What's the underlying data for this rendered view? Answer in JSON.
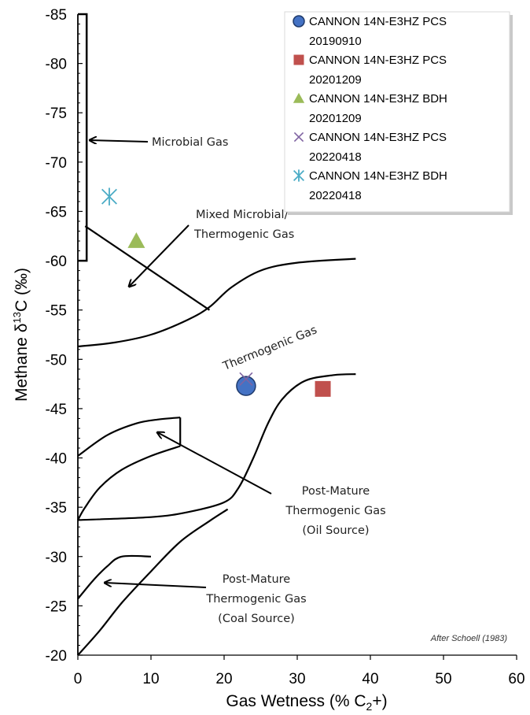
{
  "chart_data": {
    "type": "scatter",
    "xlabel": "Gas Wetness (% C",
    "xlabel_sub": "2",
    "xlabel_tail": "+)",
    "ylabel": "Methane",
    "ylabel_delta": "δ",
    "ylabel_sup": "13",
    "ylabel_tail": "C (‰)",
    "xlim": [
      0,
      60
    ],
    "ylim": [
      -20,
      -85
    ],
    "xticks": [
      "0",
      "10",
      "20",
      "30",
      "40",
      "50",
      "60"
    ],
    "yticks": [
      "-20",
      "-25",
      "-30",
      "-35",
      "-40",
      "-45",
      "-50",
      "-55",
      "-60",
      "-65",
      "-70",
      "-75",
      "-80",
      "-85"
    ],
    "grid": false,
    "legend_position": "top-right",
    "series": [
      {
        "name": "CANNON 14N-E3HZ PCS 20190910",
        "label_line1": "CANNON 14N-E3HZ PCS",
        "label_line2": "20190910",
        "marker": "circle",
        "color": "#4472C4",
        "x": 23,
        "y": -47.3
      },
      {
        "name": "CANNON 14N-E3HZ PCS 20201209",
        "label_line1": "CANNON 14N-E3HZ PCS",
        "label_line2": "20201209",
        "marker": "square",
        "color": "#C0504D",
        "x": 33.5,
        "y": -47.0
      },
      {
        "name": "CANNON 14N-E3HZ BDH 20201209",
        "label_line1": "CANNON 14N-E3HZ BDH",
        "label_line2": "20201209",
        "marker": "triangle",
        "color": "#9BBB59",
        "x": 8,
        "y": -62.0
      },
      {
        "name": "CANNON 14N-E3HZ PCS 20220418",
        "label_line1": "CANNON 14N-E3HZ PCS",
        "label_line2": "20220418",
        "marker": "x",
        "color": "#8064A2",
        "x": 23,
        "y": -48.0
      },
      {
        "name": "CANNON 14N-E3HZ BDH 20220418",
        "label_line1": "CANNON 14N-E3HZ BDH",
        "label_line2": "20220418",
        "marker": "star",
        "color": "#4BACC6",
        "x": 4.3,
        "y": -66.5
      }
    ],
    "annotations": {
      "microbial": "Microbial Gas",
      "mixed_line1": "Mixed Microbial/",
      "mixed_line2": "Thermogenic Gas",
      "thermogenic": "Thermogenic Gas",
      "pm_oil_line1": "Post-Mature",
      "pm_oil_line2": "Thermogenic Gas",
      "pm_oil_line3": "(Oil Source)",
      "pm_coal_line1": "Post-Mature",
      "pm_coal_line2": "Thermogenic Gas",
      "pm_coal_line3": "(Coal Source)",
      "credit": "After Schoell (1983)"
    },
    "boundaries": {
      "microbial_box": [
        [
          0,
          -85
        ],
        [
          1.2,
          -85
        ],
        [
          1.2,
          -60
        ],
        [
          0,
          -60
        ]
      ],
      "mixed_diagonal": [
        [
          1,
          -63.5
        ],
        [
          18,
          -55
        ]
      ],
      "thermo_upper": [
        [
          0,
          -51.3
        ],
        [
          5,
          -51.7
        ],
        [
          10,
          -52.5
        ],
        [
          15,
          -54
        ],
        [
          18,
          -55.3
        ],
        [
          21,
          -57.3
        ],
        [
          25,
          -59
        ],
        [
          30,
          -59.8
        ],
        [
          38,
          -60.2
        ]
      ],
      "thermo_lower": [
        [
          0,
          -33.7
        ],
        [
          10,
          -34
        ],
        [
          15,
          -34.5
        ],
        [
          20,
          -35.5
        ],
        [
          22,
          -37
        ],
        [
          24,
          -40
        ],
        [
          26,
          -43.5
        ],
        [
          28,
          -46
        ],
        [
          31,
          -47.8
        ],
        [
          35,
          -48.4
        ],
        [
          38,
          -48.5
        ]
      ],
      "oil_top": [
        [
          0,
          -40.2
        ],
        [
          4,
          -42.3
        ],
        [
          8,
          -43.5
        ],
        [
          11,
          -43.9
        ],
        [
          14,
          -44.1
        ]
      ],
      "oil_right": [
        [
          14,
          -44.1
        ],
        [
          14,
          -41.2
        ]
      ],
      "oil_inner": [
        [
          14,
          -41.2
        ],
        [
          10,
          -40.2
        ],
        [
          6,
          -38.8
        ],
        [
          3,
          -37
        ],
        [
          1,
          -35
        ],
        [
          0,
          -33.7
        ]
      ],
      "coal_upper": [
        [
          0,
          -25.7
        ],
        [
          2,
          -27.5
        ],
        [
          4,
          -29
        ],
        [
          6,
          -30
        ],
        [
          10,
          -30
        ]
      ],
      "coal_lower": [
        [
          0,
          -20
        ],
        [
          3,
          -22.5
        ],
        [
          6,
          -25.3
        ],
        [
          10,
          -28.5
        ],
        [
          14,
          -31.5
        ],
        [
          18,
          -33.6
        ],
        [
          20.5,
          -34.8
        ]
      ]
    }
  }
}
